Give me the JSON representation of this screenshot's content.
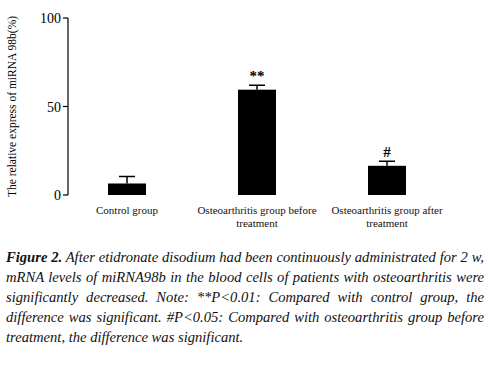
{
  "chart_data": {
    "type": "bar",
    "y_label": "The relative express of miRNA 98b(%)",
    "categories": [
      "Control group",
      "Osteoarthritis group before treatment",
      "Osteoarthritis group after treatment"
    ],
    "values": [
      6.5,
      59.5,
      16.5
    ],
    "errors": [
      4,
      2.5,
      2.5
    ],
    "color": "#000000",
    "ylim": [
      0,
      100
    ],
    "yticks": [
      0,
      50,
      100
    ],
    "grid": false,
    "annotations": [
      {
        "text": "**",
        "x": "Osteoarthritis group before treatment"
      },
      {
        "text": "#",
        "x": "Osteoarthritis group after treatment"
      }
    ]
  },
  "figure": {
    "label": "Figure 2.",
    "text": "After etidronate disodium had been continuously administrated for 2 w, mRNA levels of miRNA98b in the blood cells of patients with osteoarthritis were significantly decreased. Note: **P<0.01: Compared with control group, the difference was significant. #P<0.05: Compared with osteoarthritis group before treatment, the difference was significant."
  }
}
